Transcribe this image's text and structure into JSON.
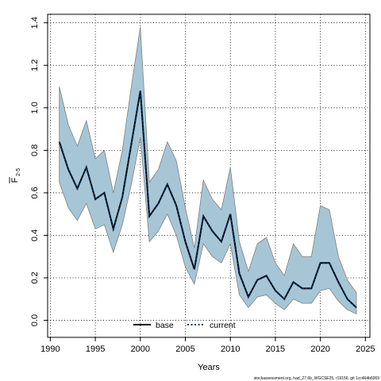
{
  "chart_data": {
    "type": "line",
    "title": "",
    "xlabel": "Years",
    "ylabel_main": "F",
    "ylabel_sub": "2-5",
    "xlim": [
      1989.7,
      2025.5
    ],
    "ylim": [
      -0.08,
      1.44
    ],
    "x_ticks": [
      1990,
      1995,
      2000,
      2005,
      2010,
      2015,
      2020,
      2025
    ],
    "y_ticks": [
      0.0,
      0.2,
      0.4,
      0.6,
      0.8,
      1.0,
      1.2,
      1.4
    ],
    "y_tick_labels": [
      "0.0",
      "0.2",
      "0.4",
      "0.6",
      "0.8",
      "1.0",
      "1.2",
      "1.4"
    ],
    "grid": true,
    "legend": {
      "placement": "bottom-center",
      "entries": [
        {
          "label": "base",
          "color": "#000000",
          "style": "solid"
        },
        {
          "label": "current",
          "color": "#003366",
          "style": "dotted"
        }
      ]
    },
    "band_color": "#a6c6d6",
    "band_edge_color": "#808080",
    "x": [
      1991,
      1992,
      1993,
      1994,
      1995,
      1996,
      1997,
      1998,
      1999,
      2000,
      2001,
      2002,
      2003,
      2004,
      2005,
      2006,
      2007,
      2008,
      2009,
      2010,
      2011,
      2012,
      2013,
      2014,
      2015,
      2016,
      2017,
      2018,
      2019,
      2020,
      2021,
      2022,
      2023,
      2024
    ],
    "series": [
      {
        "name": "current",
        "values": [
          0.84,
          0.71,
          0.62,
          0.72,
          0.57,
          0.6,
          0.43,
          0.58,
          0.83,
          1.08,
          0.49,
          0.55,
          0.64,
          0.54,
          0.37,
          0.24,
          0.49,
          0.42,
          0.37,
          0.5,
          0.22,
          0.11,
          0.19,
          0.21,
          0.14,
          0.1,
          0.18,
          0.15,
          0.15,
          0.27,
          0.27,
          0.18,
          0.1,
          0.06
        ]
      }
    ],
    "band_upper": [
      1.1,
      0.92,
      0.82,
      0.94,
      0.76,
      0.8,
      0.6,
      0.8,
      1.1,
      1.38,
      0.65,
      0.71,
      0.84,
      0.75,
      0.53,
      0.34,
      0.66,
      0.57,
      0.52,
      0.72,
      0.37,
      0.23,
      0.36,
      0.39,
      0.27,
      0.21,
      0.36,
      0.3,
      0.3,
      0.54,
      0.52,
      0.3,
      0.19,
      0.13
    ],
    "band_lower": [
      0.65,
      0.53,
      0.47,
      0.55,
      0.43,
      0.45,
      0.32,
      0.45,
      0.64,
      0.86,
      0.37,
      0.42,
      0.5,
      0.4,
      0.25,
      0.17,
      0.36,
      0.3,
      0.27,
      0.36,
      0.12,
      0.06,
      0.11,
      0.12,
      0.08,
      0.05,
      0.1,
      0.08,
      0.08,
      0.14,
      0.15,
      0.09,
      0.05,
      0.03
    ]
  },
  "footer": "stockassessment.org, had_27.6b_WGCSE25, r19156, git 1cc464b6069"
}
